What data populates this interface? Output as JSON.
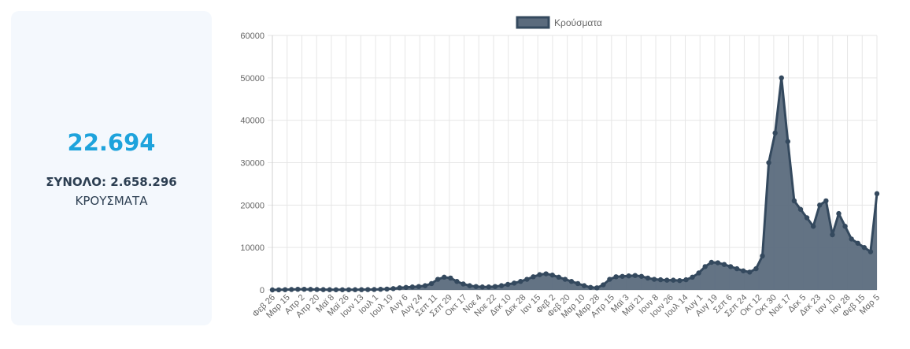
{
  "stat": {
    "value": "22.694",
    "total_label": "ΣΥΝΟΛΟ: 2.658.296",
    "unit": "ΚΡΟΥΣΜΑΤΑ"
  },
  "colors": {
    "accent": "#1ea3dc",
    "series_line": "#34495e",
    "series_fill": "#5b6b7d",
    "grid": "#e6e6e6",
    "tick_text": "#666666"
  },
  "chart_data": {
    "type": "line",
    "legend": {
      "position": "top",
      "label": "Κρούσματα"
    },
    "grid": true,
    "ylim": [
      0,
      60000
    ],
    "y_ticks": [
      0,
      10000,
      20000,
      30000,
      40000,
      50000,
      60000
    ],
    "x_tick_labels": [
      "Φεβ 26",
      "Μαρ 15",
      "Απρ 2",
      "Απρ 20",
      "Μαϊ 8",
      "Μαϊ 26",
      "Ιουν 13",
      "Ιουλ 1",
      "Ιουλ 19",
      "Αυγ 6",
      "Αυγ 24",
      "Σεπ 11",
      "Σεπ 29",
      "Οκτ 17",
      "Νοε 4",
      "Νοε 22",
      "Δεκ 10",
      "Δεκ 28",
      "Ιαν 15",
      "Φεβ 2",
      "Φεβ 20",
      "Μαρ 10",
      "Μαρ 28",
      "Απρ 15",
      "Μαϊ 3",
      "Μαϊ 21",
      "Ιουν 8",
      "Ιουν 26",
      "Ιουλ 14",
      "Αυγ 1",
      "Αυγ 19",
      "Σεπ 6",
      "Σεπ 24",
      "Οκτ 12",
      "Οκτ 30",
      "Νοε 17",
      "Δεκ 5",
      "Δεκ 23",
      "Ιαν 10",
      "Ιαν 28",
      "Φεβ 15",
      "Μαρ 5"
    ],
    "series": [
      {
        "name": "Κρούσματα",
        "values": [
          0,
          20,
          60,
          100,
          150,
          150,
          120,
          100,
          70,
          50,
          40,
          40,
          40,
          50,
          60,
          80,
          100,
          150,
          200,
          300,
          500,
          600,
          700,
          800,
          1000,
          1500,
          2500,
          3000,
          2800,
          2000,
          1400,
          1000,
          800,
          700,
          700,
          800,
          1000,
          1300,
          1600,
          2000,
          2500,
          3100,
          3600,
          3800,
          3500,
          3000,
          2500,
          2000,
          1500,
          1000,
          600,
          500,
          1200,
          2500,
          3100,
          3200,
          3300,
          3400,
          3200,
          2800,
          2500,
          2400,
          2300,
          2300,
          2200,
          2400,
          3000,
          4000,
          5500,
          6500,
          6400,
          6000,
          5500,
          5000,
          4500,
          4200,
          5000,
          8000,
          30000,
          37000,
          50000,
          35000,
          21000,
          19000,
          17000,
          15000,
          20000,
          21000,
          13000,
          18000,
          15000,
          12000,
          11000,
          10000,
          9000,
          22694
        ]
      }
    ]
  }
}
